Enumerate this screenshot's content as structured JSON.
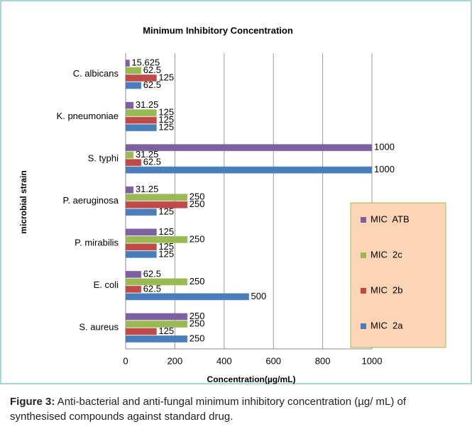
{
  "chart_data": {
    "type": "bar",
    "orientation": "horizontal",
    "title": "Minimum Inhibitory Concentration",
    "x_label": "Concentration(µg/mL)",
    "y_label": "microbial strain",
    "categories": [
      "C. albicans",
      "K.   pneumoniae",
      "S. typhi",
      "P. aeruginosa",
      "P. mirabilis",
      "E. coli",
      "S. aureus"
    ],
    "series": [
      {
        "name": "MIC  ATB",
        "color": "#7d60a0",
        "values": [
          15.625,
          31.25,
          1000,
          31.25,
          125,
          62.5,
          250
        ]
      },
      {
        "name": "MIC  2c",
        "color": "#98b954",
        "values": [
          62.5,
          125,
          31.25,
          250,
          250,
          250,
          250
        ]
      },
      {
        "name": "MIC  2b",
        "color": "#be4b48",
        "values": [
          125,
          125,
          62.5,
          250,
          125,
          62.5,
          125
        ]
      },
      {
        "name": "MIC  2a",
        "color": "#4a7ebb",
        "values": [
          62.5,
          125,
          1000,
          125,
          125,
          500,
          250
        ]
      }
    ],
    "xlim": [
      0,
      1000
    ],
    "xticks": [
      0,
      200,
      400,
      600,
      800,
      1000
    ],
    "grid": true,
    "legend_position": "right"
  },
  "caption": {
    "label": "Figure 3:",
    "text": " Anti-bacterial and anti-fungal minimum inhibitory concentration (µg/ mL) of synthesised compounds against standard drug."
  }
}
